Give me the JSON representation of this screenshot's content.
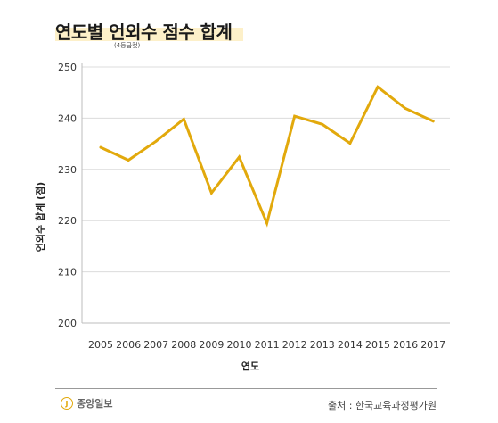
{
  "header": {
    "title": "연도별 언외수 점수 합계",
    "subtitle": "(4등급컷)"
  },
  "footer": {
    "logo_mark": "J",
    "logo_text": "중앙일보",
    "source": "출처 : 한국교육과정평가원"
  },
  "colors": {
    "line": "#e2a90c",
    "highlight": "#fdf0c9",
    "grid": "#dcdcdc"
  },
  "chart_data": {
    "type": "line",
    "title": "연도별 언외수 점수 합계",
    "subtitle": "(4등급컷)",
    "xlabel": "연도",
    "ylabel": "언외수 합계 (점)",
    "x": [
      "2005",
      "2006",
      "2007",
      "2008",
      "2009",
      "2010",
      "2011",
      "2012",
      "2013",
      "2014",
      "2015",
      "2016",
      "2017"
    ],
    "series": [
      {
        "values": [
          234.3,
          231.8,
          235.5,
          239.8,
          225.4,
          232.4,
          219.5,
          240.4,
          238.8,
          235.1,
          246.1,
          241.9,
          239.4
        ]
      }
    ],
    "ylim": [
      200,
      250
    ],
    "yticks": [
      200,
      210,
      220,
      230,
      240,
      250
    ],
    "grid": true,
    "legend": "none"
  }
}
